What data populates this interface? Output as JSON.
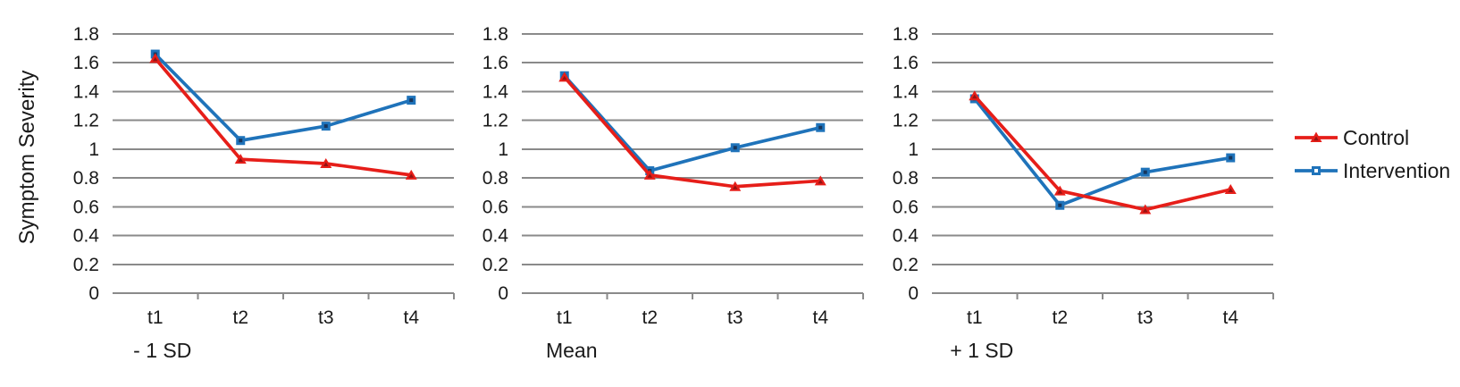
{
  "y_axis_title": "Symptom Severity",
  "legend": [
    {
      "label": "Control",
      "series": "control"
    },
    {
      "label": "Intervention",
      "series": "intervention"
    }
  ],
  "colors": {
    "control": "#E61E19",
    "control_dark": "#931313",
    "intervention": "#1F73BA",
    "intervention_dark": "#17365D",
    "legend_square_center": "#FFFFFF",
    "gridline": "#8A8A8A",
    "text": "#1A1A1A",
    "background": "#FFFFFF"
  },
  "chart_data": [
    {
      "type": "line",
      "title": "- 1 SD",
      "categories": [
        "t1",
        "t2",
        "t3",
        "t4"
      ],
      "ylim": [
        0,
        1.8
      ],
      "y_ticks": [
        "0",
        "0.2",
        "0.4",
        "0.6",
        "0.8",
        "1",
        "1.2",
        "1.4",
        "1.6",
        "1.8"
      ],
      "grid": true,
      "series": [
        {
          "name": "Control",
          "marker": "triangle",
          "values": [
            1.63,
            0.93,
            0.9,
            0.82
          ]
        },
        {
          "name": "Intervention",
          "marker": "square",
          "values": [
            1.66,
            1.06,
            1.16,
            1.34
          ]
        }
      ]
    },
    {
      "type": "line",
      "title": "Mean",
      "categories": [
        "t1",
        "t2",
        "t3",
        "t4"
      ],
      "ylim": [
        0,
        1.8
      ],
      "y_ticks": [
        "0",
        "0.2",
        "0.4",
        "0.6",
        "0.8",
        "1",
        "1.2",
        "1.4",
        "1.6",
        "1.8"
      ],
      "grid": true,
      "series": [
        {
          "name": "Control",
          "marker": "triangle",
          "values": [
            1.5,
            0.82,
            0.74,
            0.78
          ]
        },
        {
          "name": "Intervention",
          "marker": "square",
          "values": [
            1.51,
            0.85,
            1.01,
            1.15
          ]
        }
      ]
    },
    {
      "type": "line",
      "title": "+ 1 SD",
      "categories": [
        "t1",
        "t2",
        "t3",
        "t4"
      ],
      "ylim": [
        0,
        1.8
      ],
      "y_ticks": [
        "0",
        "0.2",
        "0.4",
        "0.6",
        "0.8",
        "1",
        "1.2",
        "1.4",
        "1.6",
        "1.8"
      ],
      "grid": true,
      "series": [
        {
          "name": "Control",
          "marker": "triangle",
          "values": [
            1.37,
            0.71,
            0.58,
            0.72
          ]
        },
        {
          "name": "Intervention",
          "marker": "square",
          "values": [
            1.35,
            0.61,
            0.84,
            0.94
          ]
        }
      ]
    }
  ]
}
